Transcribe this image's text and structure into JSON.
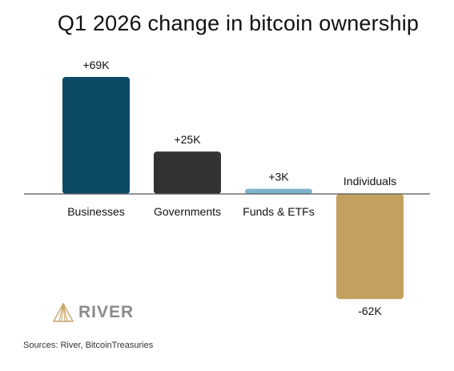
{
  "chart_data": {
    "type": "bar",
    "title": "Q1 2026 change in bitcoin ownership",
    "categories": [
      "Businesses",
      "Governments",
      "Funds & ETFs",
      "Individuals"
    ],
    "values": [
      69,
      25,
      3,
      -62
    ],
    "value_labels": [
      "+69K",
      "+25K",
      "+3K",
      "-62K"
    ],
    "unit": "K BTC",
    "colors": [
      "#0c4a66",
      "#333333",
      "#7db3cc",
      "#c4a060"
    ],
    "ylim": [
      -62,
      69
    ],
    "grid": false,
    "legend": "none"
  },
  "logo": {
    "text": "RIVER",
    "icon": "river-mountain-logo",
    "color": "#8c8c8c"
  },
  "source": "Sources: River, BitcoinTreasuries"
}
